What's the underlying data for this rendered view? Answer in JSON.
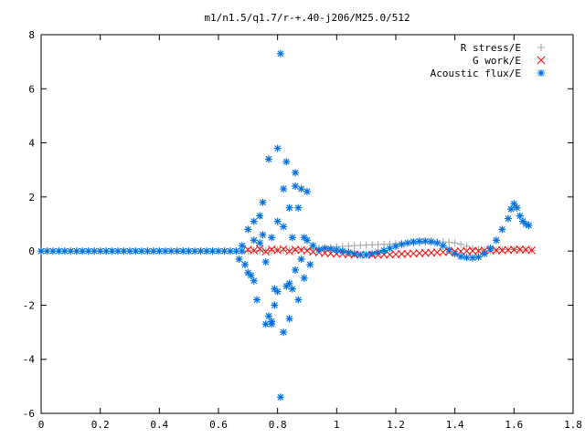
{
  "chart_data": {
    "type": "scatter",
    "title": "m1/n1.5/q1.7/r-+.40-j206/M25.0/512",
    "xlabel": "",
    "ylabel": "",
    "xlim": [
      0,
      1.8
    ],
    "ylim": [
      -6,
      8
    ],
    "grid": false,
    "legend_position": "top-right",
    "x_ticks": [
      "0",
      "0.2",
      "0.4",
      "0.6",
      "0.8",
      "1",
      "1.2",
      "1.4",
      "1.6",
      "1.8"
    ],
    "x_tick_values": [
      0,
      0.2,
      0.4,
      0.6,
      0.8,
      1.0,
      1.2,
      1.4,
      1.6,
      1.8
    ],
    "y_ticks": [
      "-6",
      "-4",
      "-2",
      "0",
      "2",
      "4",
      "6",
      "8"
    ],
    "y_tick_values": [
      -6,
      -4,
      -2,
      0,
      2,
      4,
      6,
      8
    ],
    "series": [
      {
        "name": "R stress/E",
        "marker": "plus",
        "color": "#a0a0a0",
        "x": [
          0.7,
          0.72,
          0.74,
          0.76,
          0.78,
          0.8,
          0.82,
          0.84,
          0.86,
          0.88,
          0.9,
          0.92,
          0.94,
          0.96,
          0.98,
          1.0,
          1.02,
          1.04,
          1.06,
          1.08,
          1.1,
          1.12,
          1.14,
          1.16,
          1.18,
          1.2,
          1.22,
          1.24,
          1.26,
          1.28,
          1.3,
          1.32,
          1.34,
          1.36,
          1.38,
          1.4,
          1.42,
          1.44,
          1.46,
          1.48,
          1.5,
          1.52,
          1.54,
          1.56,
          1.58,
          1.6,
          1.62,
          1.64,
          1.66
        ],
        "y": [
          0.0,
          0.02,
          0.01,
          0.03,
          0.02,
          0.04,
          0.02,
          0.05,
          0.03,
          0.06,
          0.05,
          0.08,
          0.1,
          0.12,
          0.14,
          0.15,
          0.17,
          0.18,
          0.2,
          0.21,
          0.22,
          0.23,
          0.24,
          0.25,
          0.26,
          0.27,
          0.28,
          0.29,
          0.3,
          0.31,
          0.32,
          0.33,
          0.34,
          0.34,
          0.33,
          0.3,
          0.25,
          0.18,
          0.1,
          0.05,
          0.03,
          0.02,
          0.04,
          0.05,
          0.06,
          0.06,
          0.05,
          0.04,
          0.03
        ]
      },
      {
        "name": "G work/E",
        "marker": "cross",
        "color": "#ff0000",
        "x": [
          0.7,
          0.72,
          0.74,
          0.76,
          0.78,
          0.8,
          0.82,
          0.84,
          0.86,
          0.88,
          0.9,
          0.92,
          0.94,
          0.96,
          0.98,
          1.0,
          1.02,
          1.04,
          1.06,
          1.08,
          1.1,
          1.12,
          1.14,
          1.16,
          1.18,
          1.2,
          1.22,
          1.24,
          1.26,
          1.28,
          1.3,
          1.32,
          1.34,
          1.36,
          1.38,
          1.4,
          1.42,
          1.44,
          1.46,
          1.48,
          1.5,
          1.52,
          1.54,
          1.56,
          1.58,
          1.6,
          1.62,
          1.64,
          1.66
        ],
        "y": [
          0.05,
          0.02,
          0.08,
          -0.02,
          0.06,
          0.03,
          0.07,
          -0.01,
          0.05,
          0.04,
          0.02,
          -0.03,
          -0.05,
          -0.07,
          -0.09,
          -0.1,
          -0.11,
          -0.12,
          -0.13,
          -0.13,
          -0.14,
          -0.14,
          -0.14,
          -0.13,
          -0.13,
          -0.12,
          -0.11,
          -0.1,
          -0.09,
          -0.08,
          -0.07,
          -0.06,
          -0.05,
          -0.04,
          -0.03,
          -0.02,
          -0.01,
          0.0,
          0.01,
          0.01,
          0.02,
          0.02,
          0.03,
          0.03,
          0.04,
          0.05,
          0.06,
          0.05,
          0.03
        ]
      },
      {
        "name": "Acoustic flux/E",
        "marker": "asterisk",
        "color": "#0070e0",
        "x": [
          0.0,
          0.02,
          0.04,
          0.06,
          0.08,
          0.1,
          0.12,
          0.14,
          0.16,
          0.18,
          0.2,
          0.22,
          0.24,
          0.26,
          0.28,
          0.3,
          0.32,
          0.34,
          0.36,
          0.38,
          0.4,
          0.42,
          0.44,
          0.46,
          0.48,
          0.5,
          0.52,
          0.54,
          0.56,
          0.58,
          0.6,
          0.62,
          0.64,
          0.66,
          0.68,
          0.67,
          0.68,
          0.69,
          0.7,
          0.71,
          0.72,
          0.73,
          0.74,
          0.75,
          0.76,
          0.77,
          0.78,
          0.79,
          0.8,
          0.81,
          0.82,
          0.83,
          0.84,
          0.85,
          0.86,
          0.87,
          0.88,
          0.89,
          0.9,
          0.91,
          0.7,
          0.72,
          0.74,
          0.76,
          0.78,
          0.8,
          0.82,
          0.84,
          0.86,
          0.88,
          0.9,
          0.72,
          0.75,
          0.78,
          0.81,
          0.84,
          0.87,
          0.79,
          0.82,
          0.85,
          0.77,
          0.8,
          0.83,
          0.86,
          0.89,
          0.92,
          0.94,
          0.96,
          0.98,
          1.0,
          1.02,
          1.04,
          1.06,
          1.08,
          1.1,
          1.12,
          1.14,
          1.16,
          1.18,
          1.2,
          1.22,
          1.24,
          1.26,
          1.28,
          1.3,
          1.32,
          1.34,
          1.36,
          1.38,
          1.4,
          1.42,
          1.44,
          1.46,
          1.48,
          1.5,
          1.52,
          1.54,
          1.56,
          1.58,
          1.59,
          1.6,
          1.61,
          1.62,
          1.63,
          1.64,
          1.65
        ],
        "y": [
          0,
          0,
          0,
          0,
          0,
          0,
          0,
          0,
          0,
          0,
          0,
          0,
          0,
          0,
          0,
          0,
          0,
          0,
          0,
          0,
          0,
          0,
          0,
          0,
          0,
          0,
          0,
          0,
          0,
          0,
          0,
          0,
          0,
          0,
          0,
          -0.3,
          0.2,
          -0.5,
          0.8,
          -0.9,
          1.1,
          -1.8,
          0.3,
          1.8,
          -0.4,
          3.4,
          -2.6,
          -1.4,
          3.8,
          7.3,
          -3.0,
          3.3,
          -2.5,
          0.5,
          2.4,
          -1.8,
          2.3,
          -1.0,
          2.2,
          -0.5,
          -0.8,
          0.4,
          1.3,
          -2.7,
          0.5,
          -1.5,
          0.9,
          1.6,
          -0.7,
          -0.3,
          0.4,
          -1.1,
          0.6,
          -2.7,
          -5.4,
          -1.2,
          1.6,
          -2.0,
          2.3,
          -1.4,
          -2.4,
          1.1,
          -1.3,
          2.9,
          0.5,
          0.2,
          0.05,
          0.1,
          0.08,
          0.04,
          0.0,
          -0.05,
          -0.1,
          -0.14,
          -0.14,
          -0.1,
          -0.05,
          0.02,
          0.1,
          0.18,
          0.25,
          0.3,
          0.34,
          0.36,
          0.37,
          0.35,
          0.3,
          0.2,
          0.05,
          -0.1,
          -0.2,
          -0.24,
          -0.25,
          -0.22,
          -0.1,
          0.1,
          0.4,
          0.8,
          1.2,
          1.55,
          1.75,
          1.6,
          1.3,
          1.1,
          1.0,
          0.95
        ]
      }
    ]
  }
}
